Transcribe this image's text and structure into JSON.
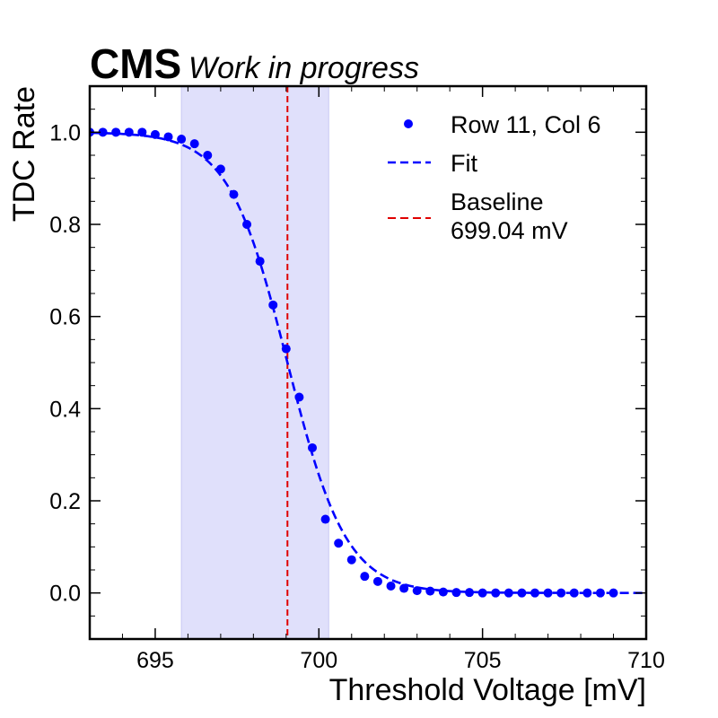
{
  "chart_data": {
    "type": "scatter",
    "experiment_label": "CMS",
    "status_label": "Work in progress",
    "title": "",
    "xlabel": "Threshold Voltage [mV]",
    "ylabel": "TDC Rate",
    "xlim": [
      693,
      710
    ],
    "ylim": [
      -0.1,
      1.1
    ],
    "x_ticks": [
      695,
      700,
      705,
      710
    ],
    "y_ticks": [
      0.0,
      0.2,
      0.4,
      0.6,
      0.8,
      1.0
    ],
    "y_tick_labels": [
      "0.0",
      "0.2",
      "0.4",
      "0.6",
      "0.8",
      "1.0"
    ],
    "band": {
      "x_start": 695.8,
      "x_end": 700.3,
      "color": "#e0e0fb"
    },
    "baseline": {
      "x": 699.04,
      "color": "#e00000"
    },
    "series": [
      {
        "name": "Row 11, Col 6",
        "kind": "points",
        "color": "#0000ff",
        "x": [
          693.0,
          693.4,
          693.8,
          694.2,
          694.6,
          695.0,
          695.4,
          695.8,
          696.2,
          696.6,
          697.0,
          697.4,
          697.8,
          698.2,
          698.6,
          699.0,
          699.4,
          699.8,
          700.2,
          700.6,
          701.0,
          701.4,
          701.8,
          702.2,
          702.6,
          703.0,
          703.4,
          703.8,
          704.2,
          704.6,
          705.0,
          705.4,
          705.8,
          706.2,
          706.6,
          707.0,
          707.4,
          707.8,
          708.2,
          708.6,
          709.0
        ],
        "y": [
          1.0,
          1.0,
          1.0,
          1.0,
          1.0,
          0.995,
          0.99,
          0.985,
          0.975,
          0.95,
          0.92,
          0.865,
          0.8,
          0.72,
          0.625,
          0.53,
          0.425,
          0.315,
          0.16,
          0.108,
          0.072,
          0.036,
          0.025,
          0.015,
          0.01,
          0.005,
          0.004,
          0.002,
          0.001,
          0.001,
          0.0,
          0.0,
          0.0,
          0.0,
          0.0,
          0.0,
          0.0,
          0.0,
          0.0,
          0.0,
          0.0
        ]
      },
      {
        "name": "Fit",
        "kind": "line",
        "color": "#0000ff",
        "dashed": true,
        "model": "sigmoid",
        "center": 699.04,
        "width": 0.9
      }
    ],
    "legend": {
      "position": "top-right",
      "entries": [
        {
          "label": "Row 11, Col 6",
          "marker": "point",
          "color": "#0000ff"
        },
        {
          "label": "Fit",
          "marker": "dashed-line",
          "color": "#0000ff"
        },
        {
          "label": "Baseline",
          "label2": "699.04 mV",
          "marker": "dashed-line",
          "color": "#e00000"
        }
      ]
    },
    "grid": false
  }
}
